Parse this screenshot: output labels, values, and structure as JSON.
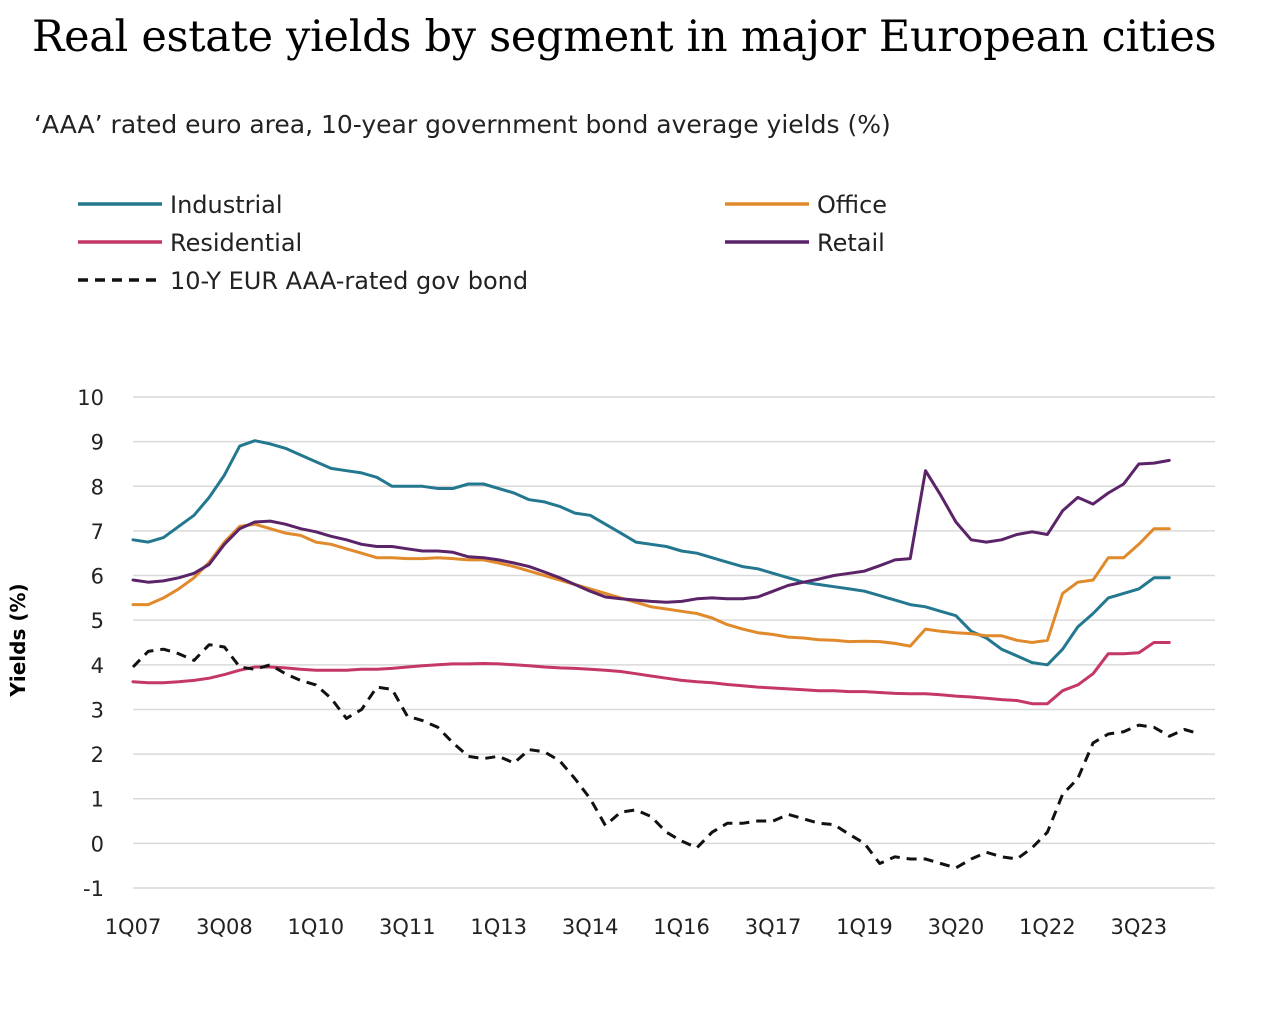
{
  "title": "Real estate yields by segment in major European cities",
  "subtitle": "‘AAA’ rated euro area, 10-year government bond average yields (%)",
  "chart_data": {
    "type": "line",
    "ylabel": "Yields (%)",
    "xlabel": "",
    "ylim": [
      -1,
      10
    ],
    "yticks": [
      10,
      9,
      8,
      7,
      6,
      5,
      4,
      3,
      2,
      1,
      0,
      -1
    ],
    "grid": true,
    "legend_position": "top",
    "x_tick_labels": [
      "1Q07",
      "3Q08",
      "1Q10",
      "3Q11",
      "1Q13",
      "3Q14",
      "1Q16",
      "3Q17",
      "1Q19",
      "3Q20",
      "1Q22",
      "3Q23"
    ],
    "x_start": "1Q07",
    "x_end": "4Q24",
    "series": [
      {
        "name": "Industrial",
        "color": "#23788f",
        "style": "solid",
        "values": [
          6.8,
          6.75,
          6.85,
          7.1,
          7.35,
          7.75,
          8.25,
          8.9,
          9.02,
          8.95,
          8.85,
          8.7,
          8.55,
          8.4,
          8.35,
          8.3,
          8.2,
          8.0,
          8.0,
          8.0,
          7.95,
          7.95,
          8.05,
          8.05,
          7.95,
          7.85,
          7.7,
          7.65,
          7.55,
          7.4,
          7.35,
          7.15,
          6.95,
          6.75,
          6.7,
          6.65,
          6.55,
          6.5,
          6.4,
          6.3,
          6.2,
          6.15,
          6.05,
          5.95,
          5.85,
          5.8,
          5.75,
          5.7,
          5.65,
          5.55,
          5.45,
          5.35,
          5.3,
          5.2,
          5.1,
          4.75,
          4.6,
          4.35,
          4.2,
          4.05,
          4.0,
          4.35,
          4.85,
          5.15,
          5.5,
          5.6,
          5.7,
          5.95,
          5.95
        ]
      },
      {
        "name": "Office",
        "color": "#e08a2c",
        "style": "solid",
        "values": [
          5.35,
          5.35,
          5.5,
          5.7,
          5.95,
          6.3,
          6.75,
          7.1,
          7.15,
          7.05,
          6.95,
          6.9,
          6.75,
          6.7,
          6.6,
          6.5,
          6.4,
          6.4,
          6.38,
          6.38,
          6.4,
          6.38,
          6.35,
          6.35,
          6.28,
          6.2,
          6.1,
          6.0,
          5.9,
          5.8,
          5.7,
          5.6,
          5.5,
          5.4,
          5.3,
          5.25,
          5.2,
          5.15,
          5.05,
          4.9,
          4.8,
          4.72,
          4.68,
          4.62,
          4.6,
          4.56,
          4.55,
          4.52,
          4.53,
          4.52,
          4.48,
          4.42,
          4.8,
          4.75,
          4.72,
          4.7,
          4.65,
          4.65,
          4.55,
          4.5,
          4.55,
          5.6,
          5.85,
          5.9,
          6.4,
          6.4,
          6.7,
          7.05,
          7.05
        ]
      },
      {
        "name": "Residential",
        "color": "#c43766",
        "style": "solid",
        "values": [
          3.62,
          3.6,
          3.6,
          3.62,
          3.65,
          3.7,
          3.78,
          3.88,
          3.95,
          3.95,
          3.93,
          3.9,
          3.88,
          3.88,
          3.88,
          3.9,
          3.9,
          3.92,
          3.95,
          3.98,
          4.0,
          4.02,
          4.02,
          4.03,
          4.02,
          4.0,
          3.98,
          3.95,
          3.93,
          3.92,
          3.9,
          3.88,
          3.85,
          3.8,
          3.75,
          3.7,
          3.65,
          3.62,
          3.6,
          3.56,
          3.53,
          3.5,
          3.48,
          3.46,
          3.44,
          3.42,
          3.42,
          3.4,
          3.4,
          3.38,
          3.36,
          3.35,
          3.35,
          3.33,
          3.3,
          3.28,
          3.25,
          3.22,
          3.2,
          3.13,
          3.13,
          3.42,
          3.55,
          3.8,
          4.25,
          4.25,
          4.27,
          4.5,
          4.5
        ]
      },
      {
        "name": "Retail",
        "color": "#5b2468",
        "style": "solid",
        "values": [
          5.9,
          5.85,
          5.88,
          5.95,
          6.05,
          6.25,
          6.7,
          7.05,
          7.2,
          7.22,
          7.15,
          7.05,
          6.98,
          6.88,
          6.8,
          6.7,
          6.65,
          6.65,
          6.6,
          6.55,
          6.55,
          6.52,
          6.42,
          6.4,
          6.35,
          6.28,
          6.2,
          6.08,
          5.95,
          5.8,
          5.65,
          5.52,
          5.48,
          5.45,
          5.42,
          5.4,
          5.42,
          5.48,
          5.5,
          5.48,
          5.48,
          5.52,
          5.65,
          5.78,
          5.85,
          5.92,
          6.0,
          6.05,
          6.1,
          6.22,
          6.35,
          6.38,
          8.35,
          7.8,
          7.2,
          6.8,
          6.75,
          6.8,
          6.92,
          6.98,
          6.92,
          7.45,
          7.75,
          7.6,
          7.85,
          8.05,
          8.5,
          8.52,
          8.58
        ]
      },
      {
        "name": "10-Y EUR AAA-rated gov bond",
        "color": "#111111",
        "style": "dashed",
        "values": [
          3.95,
          4.3,
          4.35,
          4.25,
          4.1,
          4.45,
          4.4,
          3.95,
          3.9,
          4.0,
          3.8,
          3.65,
          3.55,
          3.25,
          2.8,
          3.0,
          3.5,
          3.45,
          2.85,
          2.75,
          2.6,
          2.25,
          1.95,
          1.9,
          1.95,
          1.8,
          2.1,
          2.05,
          1.85,
          1.45,
          1.0,
          0.4,
          0.7,
          0.75,
          0.6,
          0.25,
          0.05,
          -0.1,
          0.25,
          0.45,
          0.45,
          0.5,
          0.5,
          0.65,
          0.55,
          0.45,
          0.42,
          0.2,
          0.0,
          -0.45,
          -0.3,
          -0.35,
          -0.35,
          -0.45,
          -0.55,
          -0.35,
          -0.2,
          -0.3,
          -0.35,
          -0.1,
          0.25,
          1.1,
          1.45,
          2.25,
          2.45,
          2.5,
          2.65,
          2.6,
          2.4,
          2.55,
          2.45
        ]
      }
    ]
  }
}
